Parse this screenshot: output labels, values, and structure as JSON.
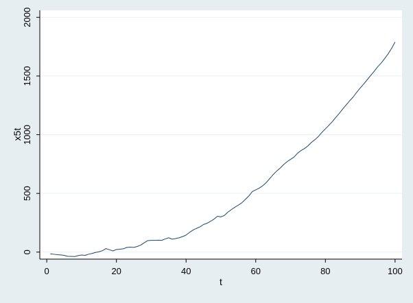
{
  "chart_data": {
    "type": "line",
    "xlabel": "t",
    "ylabel": "x5t",
    "xlim": [
      -2,
      102
    ],
    "ylim": [
      -60,
      2060
    ],
    "x_ticks": [
      0,
      20,
      40,
      60,
      80,
      100
    ],
    "y_ticks": [
      0,
      500,
      1000,
      1500,
      2000
    ],
    "grid": "horizontal",
    "colors": {
      "background": "#e6eef2",
      "plot_area": "#ffffff",
      "line": "#1a476f",
      "gridline": "#eaf2f3",
      "axis": "#000000"
    },
    "series": [
      {
        "x": [
          1,
          2,
          3,
          4,
          5,
          6,
          7,
          8,
          9,
          10,
          11,
          12,
          13,
          14,
          15,
          16,
          17,
          18,
          19,
          20,
          21,
          22,
          23,
          24,
          25,
          26,
          27,
          28,
          29,
          30,
          31,
          32,
          33,
          34,
          35,
          36,
          37,
          38,
          39,
          40,
          41,
          42,
          43,
          44,
          45,
          46,
          47,
          48,
          49,
          50,
          51,
          52,
          53,
          54,
          55,
          56,
          57,
          58,
          59,
          60,
          61,
          62,
          63,
          64,
          65,
          66,
          67,
          68,
          69,
          70,
          71,
          72,
          73,
          74,
          75,
          76,
          77,
          78,
          79,
          80,
          81,
          82,
          83,
          84,
          85,
          86,
          87,
          88,
          89,
          90,
          91,
          92,
          93,
          94,
          95,
          96,
          97,
          98,
          99,
          100
        ],
        "values": [
          -15,
          -18,
          -22,
          -24,
          -28,
          -36,
          -37,
          -38,
          -30,
          -25,
          -28,
          -18,
          -12,
          -3,
          3,
          12,
          30,
          20,
          10,
          22,
          25,
          28,
          40,
          42,
          40,
          48,
          60,
          80,
          98,
          100,
          100,
          101,
          100,
          112,
          122,
          110,
          115,
          122,
          132,
          145,
          168,
          188,
          202,
          215,
          235,
          245,
          262,
          280,
          305,
          300,
          312,
          340,
          362,
          382,
          400,
          420,
          448,
          478,
          515,
          530,
          545,
          565,
          592,
          625,
          660,
          690,
          715,
          745,
          770,
          790,
          810,
          842,
          865,
          882,
          905,
          935,
          958,
          985,
          1020,
          1050,
          1080,
          1112,
          1148,
          1182,
          1220,
          1255,
          1290,
          1322,
          1362,
          1398,
          1432,
          1468,
          1505,
          1540,
          1578,
          1610,
          1648,
          1688,
          1735,
          1790
        ]
      }
    ]
  }
}
